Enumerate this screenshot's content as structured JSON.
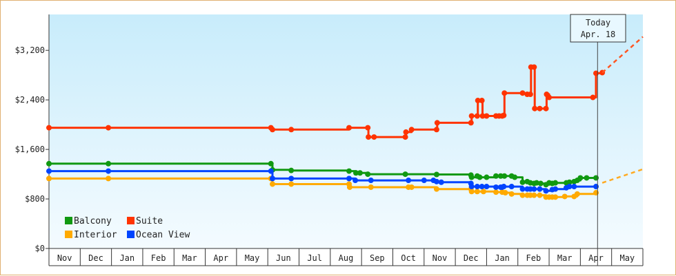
{
  "chart_data": {
    "type": "line",
    "title": "",
    "xlabel": "",
    "ylabel": "",
    "x_months": [
      "Nov",
      "Dec",
      "Jan",
      "Feb",
      "Mar",
      "Apr",
      "May",
      "Jun",
      "Jul",
      "Aug",
      "Sep",
      "Oct",
      "Nov",
      "Dec",
      "Jan",
      "Feb",
      "Mar",
      "Apr",
      "May"
    ],
    "y_ticks": [
      "$0",
      "$800",
      "$1,600",
      "$2,400",
      "$3,200"
    ],
    "y_tick_values": [
      0,
      800,
      1600,
      2400,
      3200
    ],
    "ylim": [
      0,
      3780
    ],
    "xlim_months": [
      0,
      19
    ],
    "grid": false,
    "legend": "bottom-left",
    "today_marker": {
      "line1": "Today",
      "line2": "Apr. 18",
      "month": 17.55
    },
    "series": [
      {
        "name": "Balcony",
        "color": "#119911",
        "points": [
          [
            0,
            1370
          ],
          [
            1.9,
            1370
          ],
          [
            7.1,
            1370
          ],
          [
            7.15,
            1270
          ],
          [
            7.75,
            1260
          ],
          [
            9.6,
            1250
          ],
          [
            9.82,
            1220
          ],
          [
            9.95,
            1220
          ],
          [
            10.2,
            1200
          ],
          [
            11.4,
            1200
          ],
          [
            12.4,
            1195
          ],
          [
            13.5,
            1185
          ],
          [
            13.52,
            1150
          ],
          [
            13.7,
            1170
          ],
          [
            13.78,
            1150
          ],
          [
            14.0,
            1150
          ],
          [
            14.3,
            1170
          ],
          [
            14.45,
            1170
          ],
          [
            14.57,
            1170
          ],
          [
            14.8,
            1170
          ],
          [
            14.9,
            1150
          ],
          [
            15.15,
            1070
          ],
          [
            15.3,
            1080
          ],
          [
            15.4,
            1060
          ],
          [
            15.52,
            1050
          ],
          [
            15.6,
            1060
          ],
          [
            15.73,
            1050
          ],
          [
            15.9,
            1030
          ],
          [
            16.0,
            1060
          ],
          [
            16.1,
            1050
          ],
          [
            16.2,
            1060
          ],
          [
            16.55,
            1060
          ],
          [
            16.65,
            1070
          ],
          [
            16.8,
            1080
          ],
          [
            16.9,
            1100
          ],
          [
            17.0,
            1140
          ],
          [
            17.2,
            1140
          ],
          [
            17.5,
            1140
          ]
        ]
      },
      {
        "name": "Interior",
        "color": "#ffaa00",
        "points": [
          [
            0,
            1130
          ],
          [
            1.9,
            1130
          ],
          [
            7.1,
            1130
          ],
          [
            7.15,
            1040
          ],
          [
            7.75,
            1040
          ],
          [
            9.6,
            1040
          ],
          [
            9.62,
            990
          ],
          [
            10.3,
            990
          ],
          [
            11.5,
            990
          ],
          [
            11.6,
            990
          ],
          [
            12.4,
            960
          ],
          [
            13.5,
            960
          ],
          [
            13.52,
            920
          ],
          [
            13.7,
            920
          ],
          [
            13.9,
            920
          ],
          [
            14.3,
            910
          ],
          [
            14.5,
            910
          ],
          [
            14.6,
            900
          ],
          [
            14.8,
            880
          ],
          [
            15.15,
            860
          ],
          [
            15.3,
            860
          ],
          [
            15.4,
            860
          ],
          [
            15.52,
            860
          ],
          [
            15.7,
            860
          ],
          [
            15.9,
            830
          ],
          [
            16.0,
            830
          ],
          [
            16.1,
            830
          ],
          [
            16.2,
            830
          ],
          [
            16.5,
            840
          ],
          [
            16.8,
            840
          ],
          [
            16.9,
            880
          ],
          [
            17.5,
            900
          ]
        ]
      },
      {
        "name": "Suite",
        "color": "#ff3300",
        "points": [
          [
            0,
            1950
          ],
          [
            1.9,
            1950
          ],
          [
            7.1,
            1950
          ],
          [
            7.15,
            1920
          ],
          [
            7.75,
            1920
          ],
          [
            9.6,
            1950
          ],
          [
            10.2,
            1950
          ],
          [
            10.22,
            1800
          ],
          [
            10.4,
            1800
          ],
          [
            11.4,
            1800
          ],
          [
            11.42,
            1880
          ],
          [
            11.6,
            1920
          ],
          [
            12.4,
            1920
          ],
          [
            12.42,
            2030
          ],
          [
            13.5,
            2030
          ],
          [
            13.52,
            2140
          ],
          [
            13.7,
            2140
          ],
          [
            13.72,
            2390
          ],
          [
            13.85,
            2390
          ],
          [
            13.87,
            2140
          ],
          [
            14.0,
            2140
          ],
          [
            14.3,
            2140
          ],
          [
            14.4,
            2140
          ],
          [
            14.5,
            2140
          ],
          [
            14.55,
            2150
          ],
          [
            14.57,
            2510
          ],
          [
            15.15,
            2510
          ],
          [
            15.3,
            2490
          ],
          [
            15.4,
            2490
          ],
          [
            15.42,
            2930
          ],
          [
            15.52,
            2930
          ],
          [
            15.54,
            2260
          ],
          [
            15.7,
            2260
          ],
          [
            15.9,
            2260
          ],
          [
            15.92,
            2490
          ],
          [
            16.0,
            2440
          ],
          [
            17.4,
            2440
          ],
          [
            17.5,
            2830
          ],
          [
            17.7,
            2840
          ]
        ]
      },
      {
        "name": "Ocean View",
        "color": "#0044ff",
        "points": [
          [
            0,
            1250
          ],
          [
            1.9,
            1250
          ],
          [
            7.1,
            1250
          ],
          [
            7.15,
            1130
          ],
          [
            7.75,
            1130
          ],
          [
            9.6,
            1130
          ],
          [
            9.8,
            1100
          ],
          [
            10.3,
            1100
          ],
          [
            11.5,
            1100
          ],
          [
            12.0,
            1100
          ],
          [
            12.3,
            1100
          ],
          [
            12.4,
            1080
          ],
          [
            12.55,
            1070
          ],
          [
            13.5,
            1050
          ],
          [
            13.52,
            1000
          ],
          [
            13.7,
            1000
          ],
          [
            13.85,
            1000
          ],
          [
            14.0,
            1000
          ],
          [
            14.3,
            990
          ],
          [
            14.45,
            990
          ],
          [
            14.5,
            990
          ],
          [
            14.55,
            1000
          ],
          [
            14.8,
            1000
          ],
          [
            15.15,
            960
          ],
          [
            15.3,
            960
          ],
          [
            15.4,
            960
          ],
          [
            15.52,
            960
          ],
          [
            15.7,
            960
          ],
          [
            15.9,
            930
          ],
          [
            16.1,
            950
          ],
          [
            16.2,
            960
          ],
          [
            16.55,
            980
          ],
          [
            16.65,
            1000
          ],
          [
            16.8,
            1000
          ],
          [
            17.5,
            1000
          ]
        ]
      }
    ],
    "forecast": [
      {
        "series": "Suite",
        "from_month": 17.7,
        "from_value": 2840,
        "to_month": 19.0,
        "to_value": 3420
      },
      {
        "series": "Ocean View",
        "from_month": 17.7,
        "from_value": 1060,
        "to_month": 19.0,
        "to_value": 1280
      }
    ]
  }
}
